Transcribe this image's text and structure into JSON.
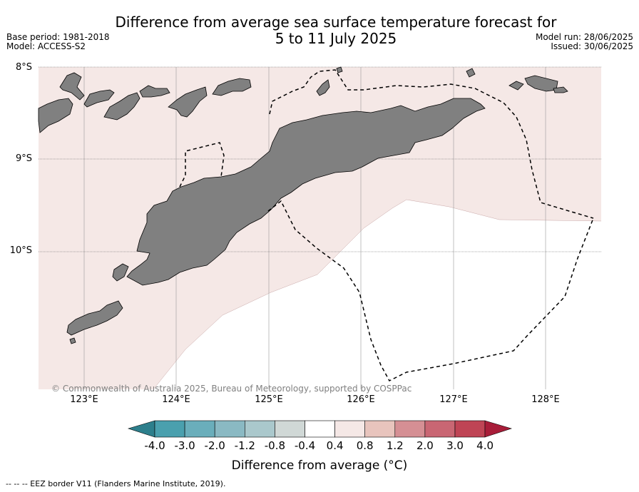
{
  "title_line1": "Difference from average sea surface temperature forecast for",
  "title_line2": "5 to 11 July 2025",
  "base_period": "Base period: 1981-2018",
  "model": "Model: ACCESS-S2",
  "model_run": "Model run: 28/06/2025",
  "issued": "Issued: 30/06/2025",
  "lat_labels": [
    "8°S",
    "9°S",
    "10°S"
  ],
  "lon_labels": [
    "123°E",
    "124°E",
    "125°E",
    "126°E",
    "127°E",
    "128°E"
  ],
  "copyright": "© Commonwealth of Australia 2025, Bureau of Meteorology, supported by COSPPac",
  "colorbar": {
    "ticks": [
      "-4.0",
      "-3.0",
      "-2.0",
      "-1.2",
      "-0.8",
      "-0.4",
      "0.4",
      "0.8",
      "1.2",
      "2.0",
      "3.0",
      "4.0"
    ],
    "colors": [
      "#2d7f8c",
      "#4aa0ae",
      "#6aaebb",
      "#8ab9c3",
      "#aac8cc",
      "#d0d8d6",
      "#ffffff",
      "#f5e8e6",
      "#e8c4bd",
      "#d58f94",
      "#c96673",
      "#bf4455",
      "#a81d39"
    ],
    "label": "Difference from average (°C)"
  },
  "legend_footnote": "--  --  -- EEZ border V11 (Flanders Marine Institute, 2019).",
  "map_colors": {
    "land": "#808080",
    "ocean_warm": "#f5e8e6",
    "ocean_neutral": "#ffffff"
  }
}
